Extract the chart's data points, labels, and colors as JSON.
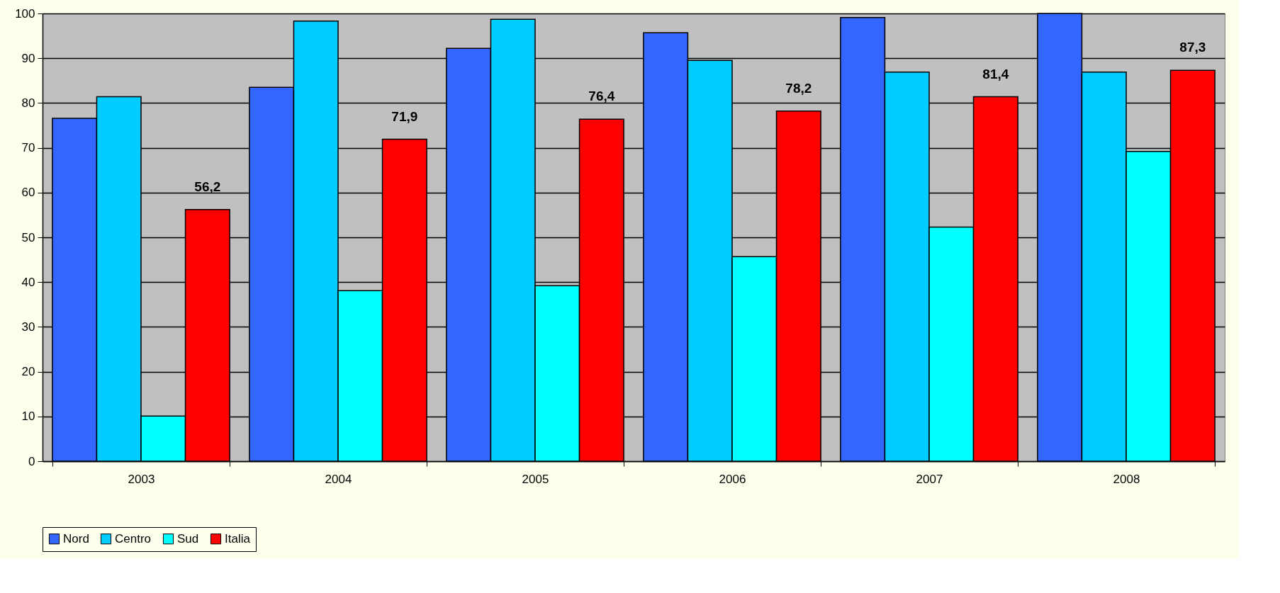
{
  "chart_data": {
    "type": "bar",
    "categories": [
      "2003",
      "2004",
      "2005",
      "2006",
      "2007",
      "2008"
    ],
    "series": [
      {
        "name": "Nord",
        "color": "#3366ff",
        "values": [
          76.6,
          83.5,
          92.2,
          95.7,
          99.1,
          100
        ]
      },
      {
        "name": "Centro",
        "color": "#00ccff",
        "values": [
          81.4,
          98.3,
          98.7,
          89.5,
          86.9,
          86.9
        ]
      },
      {
        "name": "Sud",
        "color": "#00ffff",
        "values": [
          10.1,
          38.1,
          39.2,
          45.7,
          52.3,
          69.2
        ]
      },
      {
        "name": "Italia",
        "color": "#ff0000",
        "values": [
          56.2,
          71.9,
          76.4,
          78.2,
          81.4,
          87.3
        ],
        "value_labels": [
          "56,2",
          "71,9",
          "76,4",
          "78,2",
          "81,4",
          "87,3"
        ]
      }
    ],
    "ylim": [
      0,
      100
    ],
    "yticks": [
      0,
      10,
      20,
      30,
      40,
      50,
      60,
      70,
      80,
      90,
      100
    ],
    "grid": "y",
    "legend": "bottom"
  }
}
